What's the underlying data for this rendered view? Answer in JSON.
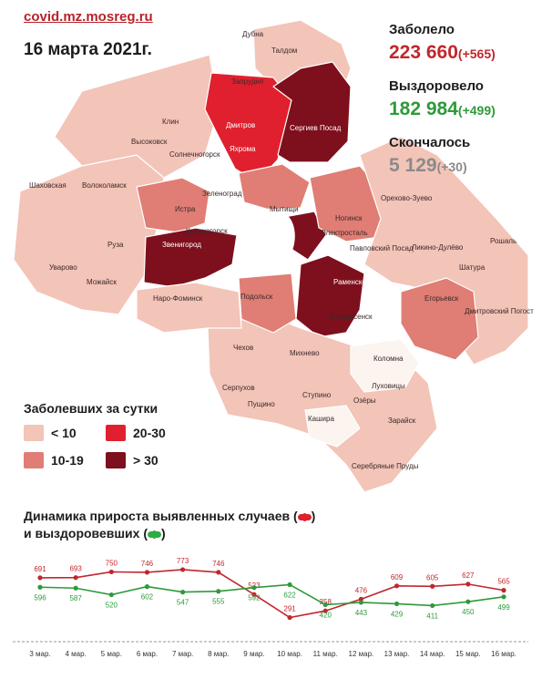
{
  "header": {
    "site": "covid.mz.mosreg.ru",
    "date": "16 марта 2021г."
  },
  "stats": {
    "sick_label": "Заболело",
    "sick_value": "223 660",
    "sick_delta": "(+565)",
    "recovered_label": "Выздоровело",
    "recovered_value": "182 984",
    "recovered_delta": "(+499)",
    "died_label": "Скончалось",
    "died_value": "5 129",
    "died_delta": "(+30)"
  },
  "colors": {
    "sick": "#c0272d",
    "recovered": "#2e9a3a",
    "died": "#8a8a8a",
    "lvl_lt10": "#f3c4b8",
    "lvl_10_19": "#e07d74",
    "lvl_20_30": "#e0202e",
    "lvl_gt30": "#7e0f1d"
  },
  "legend": {
    "title": "Заболевших за сутки",
    "items": [
      {
        "label": "< 10"
      },
      {
        "label": "20-30"
      },
      {
        "label": "10-19"
      },
      {
        "label": "> 30"
      }
    ]
  },
  "map_labels": [
    "Талдом",
    "Дубна",
    "Запрудня",
    "Дмитров",
    "Яхрома",
    "Сергиев Посад",
    "Клин",
    "Высоковск",
    "Солнечногорск",
    "Шаховская",
    "Волоколамск",
    "Истра",
    "Зеленоград",
    "Мытищи",
    "Руза",
    "Звенигород",
    "Красногорск",
    "Ногинск",
    "Электросталь",
    "Орехово-Зуево",
    "Павловский Посад",
    "Ликино-Дулёво",
    "Рошаль",
    "Шатура",
    "Уварово",
    "Можайск",
    "Наро-Фоминск",
    "Раменское",
    "Воскресенск",
    "Егорьевск",
    "Дмитровский Погост",
    "Чехов",
    "Михнево",
    "Коломна",
    "Серпухов",
    "Ступино",
    "Пущино",
    "Луховицы",
    "Озёры",
    "Зарайск",
    "Кашира",
    "Серебряные Пруды",
    "Подольск"
  ],
  "dynamics": {
    "title_line1": "Динамика прироста выявленных случаев (",
    "title_line1_end": ")",
    "title_line2": "и выздоровевших (",
    "title_line2_end": ")"
  },
  "chart_data": {
    "type": "line",
    "categories": [
      "3 мар.",
      "4 мар.",
      "5 мар.",
      "6 мар.",
      "7 мар.",
      "8 мар.",
      "9 мар.",
      "10 мар.",
      "11 мар.",
      "12 мар.",
      "13 мар.",
      "14 мар.",
      "15 мар.",
      "16 мар."
    ],
    "series": [
      {
        "name": "выявленные случаи",
        "color": "#c0272d",
        "values": [
          691,
          693,
          750,
          746,
          773,
          746,
          523,
          291,
          358,
          476,
          609,
          605,
          627,
          565
        ]
      },
      {
        "name": "выздоровевшие",
        "color": "#2e9a3a",
        "values": [
          596,
          587,
          520,
          602,
          547,
          555,
          592,
          622,
          420,
          443,
          429,
          411,
          450,
          499
        ]
      }
    ],
    "title": "Динамика прироста выявленных случаев и выздоровевших",
    "grid": false
  }
}
